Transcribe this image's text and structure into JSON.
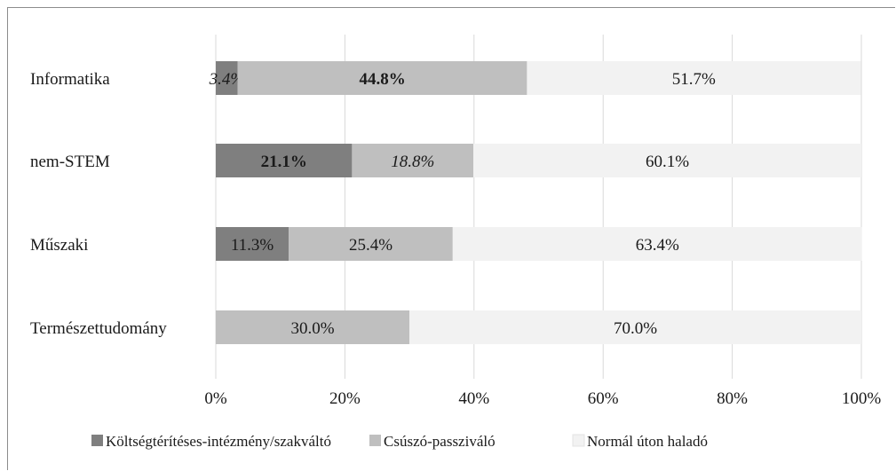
{
  "chart_data": {
    "type": "bar",
    "orientation": "horizontal",
    "stacked": true,
    "categories": [
      "Informatika",
      "nem-STEM",
      "Műszaki",
      "Természettudomány"
    ],
    "series": [
      {
        "name": "Költségtérítéses-intézmény/szakváltó",
        "values": [
          3.4,
          21.1,
          11.3,
          0
        ],
        "color": "#7f7f7f",
        "labels": [
          "3.4%",
          "21.1%",
          "11.3%",
          ""
        ],
        "label_styles": [
          "italic",
          "bold",
          "normal",
          "normal"
        ]
      },
      {
        "name": "Csúszó-passziváló",
        "values": [
          44.8,
          18.8,
          25.4,
          30.0
        ],
        "color": "#bfbfbf",
        "labels": [
          "44.8%",
          "18.8%",
          "25.4%",
          "30.0%"
        ],
        "label_styles": [
          "bold",
          "italic",
          "normal",
          "normal"
        ]
      },
      {
        "name": "Normál úton haladó",
        "values": [
          51.7,
          60.1,
          63.4,
          70.0
        ],
        "color": "#f2f2f2",
        "labels": [
          "51.7%",
          "60.1%",
          "63.4%",
          "70.0%"
        ],
        "label_styles": [
          "normal",
          "normal",
          "normal",
          "normal"
        ]
      }
    ],
    "x_ticks": [
      "0%",
      "20%",
      "40%",
      "60%",
      "80%",
      "100%"
    ],
    "xlim": [
      0,
      100
    ],
    "grid": true,
    "legend_position": "bottom",
    "title": "",
    "xlabel": "",
    "ylabel": ""
  }
}
